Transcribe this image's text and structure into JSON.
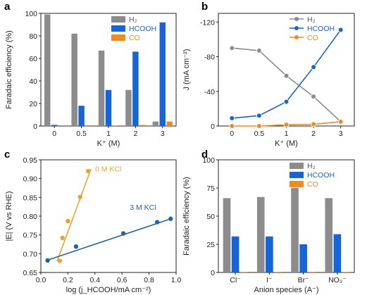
{
  "chart_data": [
    {
      "panel": "a",
      "type": "bar",
      "ylabel": "Faradaic efficiency (%)",
      "xlabel": "K⁺ (M)",
      "categories": [
        "0",
        "0.5",
        "1",
        "2",
        "3"
      ],
      "ylim": [
        0,
        100
      ],
      "yticks": [
        0,
        20,
        40,
        60,
        80,
        100
      ],
      "legend": "top-right",
      "series": [
        {
          "name": "H₂",
          "color": "#8c8c8c",
          "values": [
            99,
            82,
            67,
            32,
            4
          ]
        },
        {
          "name": "HCOOH",
          "color": "#1565d8",
          "values": [
            1,
            18,
            32,
            66,
            92
          ]
        },
        {
          "name": "CO",
          "color": "#f28a1c",
          "values": [
            0,
            0,
            0.5,
            1,
            4
          ]
        }
      ]
    },
    {
      "panel": "b",
      "type": "line",
      "ylabel": "J (mA cm⁻²)",
      "xlabel": "K⁺ (M)",
      "categories": [
        "0",
        "0.5",
        "1",
        "2",
        "3"
      ],
      "ylim": [
        0,
        -130
      ],
      "yticks": [
        0,
        -40,
        -80,
        -120
      ],
      "legend": "top-right",
      "series": [
        {
          "name": "H₂",
          "color": "#8c8c8c",
          "values": [
            -90,
            -87,
            -58,
            -34,
            -5
          ]
        },
        {
          "name": "HCOOH",
          "color": "#1565d8",
          "values": [
            -9,
            -12,
            -28,
            -68,
            -111
          ]
        },
        {
          "name": "CO",
          "color": "#f28a1c",
          "values": [
            0,
            0,
            -1.5,
            -2,
            -5
          ]
        }
      ]
    },
    {
      "panel": "c",
      "type": "scatter",
      "ylabel": "|E| (V vs RHE)",
      "xlabel": "log (j_HCOOH/mA cm⁻²)",
      "xlim": [
        0,
        1.0
      ],
      "xticks": [
        0,
        0.2,
        0.4,
        0.6,
        0.8,
        1.0
      ],
      "ylim": [
        0.65,
        0.95
      ],
      "yticks": [
        0.65,
        0.7,
        0.75,
        0.8,
        0.85,
        0.9,
        0.95
      ],
      "series": [
        {
          "name": "0 M KCl",
          "color": "#f0a030",
          "points": [
            [
              0.14,
              0.681
            ],
            [
              0.16,
              0.742
            ],
            [
              0.2,
              0.787
            ],
            [
              0.29,
              0.851
            ],
            [
              0.35,
              0.92
            ]
          ],
          "fit": [
            [
              0.12,
              0.68
            ],
            [
              0.37,
              0.925
            ]
          ]
        },
        {
          "name": "3 M KCl",
          "color": "#1a66b0",
          "points": [
            [
              0.05,
              0.682
            ],
            [
              0.26,
              0.719
            ],
            [
              0.61,
              0.754
            ],
            [
              0.86,
              0.784
            ],
            [
              0.96,
              0.793
            ]
          ],
          "fit": [
            [
              0.05,
              0.683
            ],
            [
              0.97,
              0.794
            ]
          ]
        }
      ]
    },
    {
      "panel": "d",
      "type": "bar",
      "ylabel": "Faradaic efficiency (%)",
      "xlabel": "Anion species (A⁻)",
      "categories": [
        "Cl⁻",
        "I⁻",
        "Br⁻",
        "NO₃⁻"
      ],
      "ylim": [
        0,
        100
      ],
      "yticks": [
        0,
        25,
        50,
        75,
        100
      ],
      "legend": "top-right",
      "series": [
        {
          "name": "H₂",
          "color": "#8c8c8c",
          "values": [
            66,
            67,
            75,
            66
          ]
        },
        {
          "name": "HCOOH",
          "color": "#1565d8",
          "values": [
            32,
            32,
            25,
            34
          ]
        },
        {
          "name": "CO",
          "color": "#f28a1c",
          "values": [
            0.5,
            0.5,
            0.5,
            0.5
          ]
        }
      ]
    }
  ],
  "panel_labels": [
    "a",
    "b",
    "c",
    "d"
  ]
}
